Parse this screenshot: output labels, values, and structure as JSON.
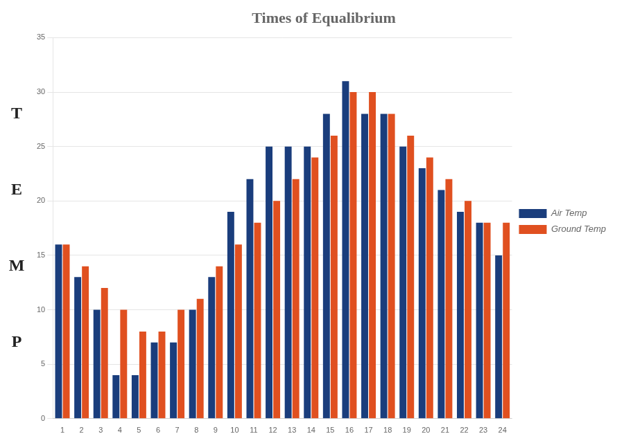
{
  "chart_data": {
    "type": "bar",
    "title": "Times of Equalibrium",
    "ylabel": "TEMP",
    "categories": [
      1,
      2,
      3,
      4,
      5,
      6,
      7,
      8,
      9,
      10,
      11,
      12,
      13,
      14,
      15,
      16,
      17,
      18,
      19,
      20,
      21,
      22,
      23,
      24
    ],
    "series": [
      {
        "name": "Air Temp",
        "color": "#1a3d7c",
        "values": [
          16,
          13,
          10,
          4,
          4,
          7,
          7,
          10,
          13,
          19,
          22,
          25,
          25,
          25,
          28,
          31,
          28,
          28,
          25,
          23,
          21,
          19,
          18,
          15
        ]
      },
      {
        "name": "Ground Temp",
        "color": "#e05020",
        "values": [
          16,
          14,
          12,
          10,
          8,
          8,
          10,
          11,
          14,
          16,
          18,
          20,
          22,
          24,
          26,
          30,
          30,
          28,
          26,
          24,
          22,
          20,
          18,
          18
        ]
      }
    ],
    "ylim": [
      0,
      35
    ],
    "yticks": [
      0,
      5,
      10,
      15,
      20,
      25,
      30,
      35
    ],
    "grid": true,
    "legend": "right"
  }
}
